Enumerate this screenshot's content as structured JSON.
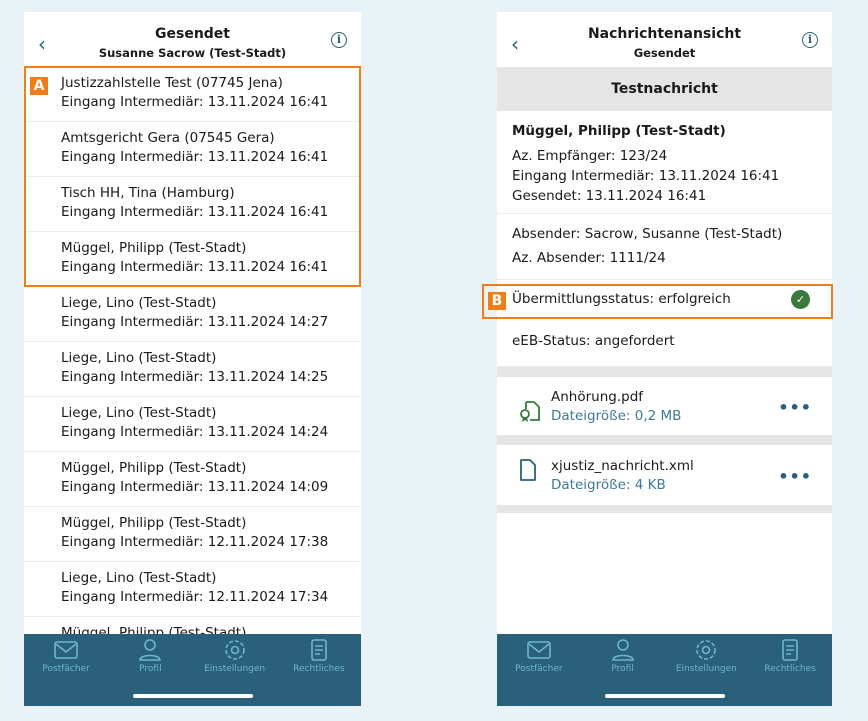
{
  "left": {
    "title": "Gesendet",
    "subtitle": "Susanne Sacrow (Test-Stadt)",
    "highlight_label": "A",
    "messages": [
      {
        "name": "Justizzahlstelle Test (07745 Jena)",
        "date": "Eingang Intermediär: 13.11.2024 16:41"
      },
      {
        "name": "Amtsgericht Gera (07545 Gera)",
        "date": "Eingang Intermediär: 13.11.2024 16:41"
      },
      {
        "name": "Tisch HH, Tina (Hamburg)",
        "date": "Eingang Intermediär: 13.11.2024 16:41"
      },
      {
        "name": "Müggel, Philipp (Test-Stadt)",
        "date": "Eingang Intermediär: 13.11.2024 16:41"
      },
      {
        "name": "Liege, Lino (Test-Stadt)",
        "date": "Eingang Intermediär: 13.11.2024 14:27"
      },
      {
        "name": "Liege, Lino (Test-Stadt)",
        "date": "Eingang Intermediär: 13.11.2024 14:25"
      },
      {
        "name": "Liege, Lino (Test-Stadt)",
        "date": "Eingang Intermediär: 13.11.2024 14:24"
      },
      {
        "name": "Müggel, Philipp (Test-Stadt)",
        "date": "Eingang Intermediär: 13.11.2024 14:09"
      },
      {
        "name": "Müggel, Philipp (Test-Stadt)",
        "date": "Eingang Intermediär: 12.11.2024 17:38"
      },
      {
        "name": "Liege, Lino (Test-Stadt)",
        "date": "Eingang Intermediär: 12.11.2024 17:34"
      },
      {
        "name": "Müggel, Philipp (Test-Stadt)",
        "date": ""
      }
    ]
  },
  "right": {
    "title": "Nachrichtenansicht",
    "subtitle": "Gesendet",
    "subject": "Testnachricht",
    "recipient": "Müggel, Philipp (Test-Stadt)",
    "az_recipient": "Az. Empfänger: 123/24",
    "received": "Eingang Intermediär: 13.11.2024 16:41",
    "sent": "Gesendet: 13.11.2024 16:41",
    "sender": "Absender: Sacrow, Susanne (Test-Stadt)",
    "az_sender": "Az. Absender: 1111/24",
    "status": "Übermittlungsstatus: erfolgreich",
    "highlight_label": "B",
    "eeb": "eEB-Status: angefordert",
    "files": [
      {
        "name": "Anhörung.pdf",
        "size": "Dateigröße: 0,2 MB",
        "icon": "signed-document-icon"
      },
      {
        "name": "xjustiz_nachricht.xml",
        "size": "Dateigröße: 4 KB",
        "icon": "document-icon"
      }
    ]
  },
  "tabs": [
    "Postfächer",
    "Profil",
    "Einstellungen",
    "Rechtliches"
  ],
  "colors": {
    "accent": "#2a6079",
    "highlight": "#f07d1a",
    "success": "#3a7a3e"
  }
}
